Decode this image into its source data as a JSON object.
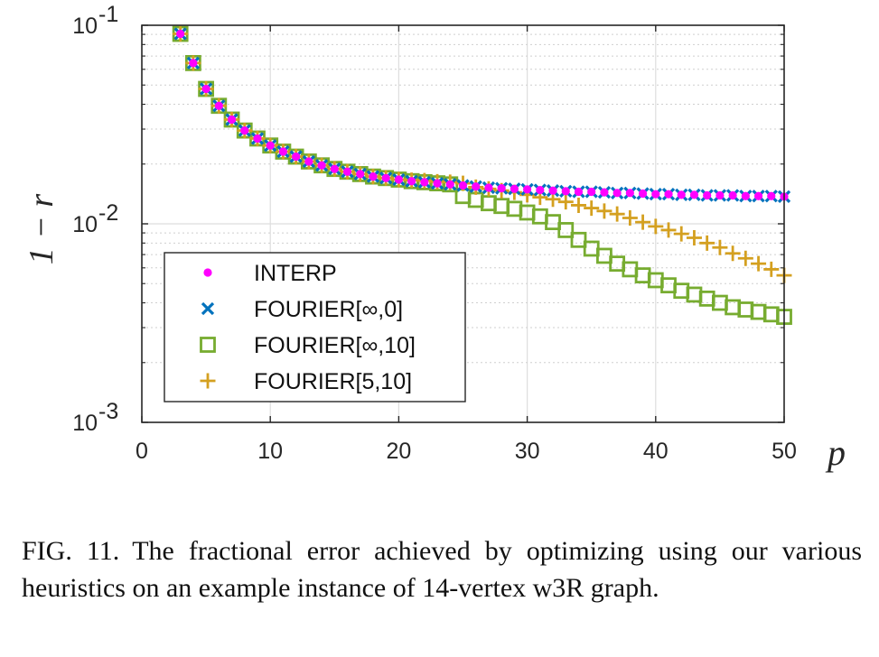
{
  "chart_data": {
    "type": "scatter",
    "xlabel": "p",
    "ylabel": "1 − r",
    "xlim": [
      0,
      50
    ],
    "ylim": [
      0.001,
      0.1
    ],
    "xscale": "linear",
    "yscale": "log",
    "grid": true,
    "minor_grid": true,
    "legend_position": "lower-left",
    "x_ticks": [
      0,
      10,
      20,
      30,
      40,
      50
    ],
    "x_tick_labels": [
      "0",
      "10",
      "20",
      "30",
      "40",
      "50"
    ],
    "y_ticks": [
      {
        "value": 0.1,
        "base": "10",
        "exp": "-1"
      },
      {
        "value": 0.01,
        "base": "10",
        "exp": "-2"
      },
      {
        "value": 0.001,
        "base": "10",
        "exp": "-3"
      }
    ],
    "series": [
      {
        "name": "INTERP",
        "marker": "dot",
        "color": "#ff00ff",
        "x": [
          3,
          4,
          5,
          6,
          7,
          8,
          9,
          10,
          11,
          12,
          13,
          14,
          15,
          16,
          17,
          18,
          19,
          20,
          21,
          22,
          23,
          24,
          25,
          26,
          27,
          28,
          29,
          30,
          31,
          32,
          33,
          34,
          35,
          36,
          37,
          38,
          39,
          40,
          41,
          42,
          43,
          44,
          45,
          46,
          47,
          48,
          49,
          50
        ],
        "y": [
          0.0905,
          0.0645,
          0.0478,
          0.0393,
          0.0335,
          0.0295,
          0.0269,
          0.0248,
          0.0231,
          0.0218,
          0.0206,
          0.0197,
          0.0189,
          0.0183,
          0.0178,
          0.0173,
          0.017,
          0.0167,
          0.0164,
          0.0162,
          0.016,
          0.0158,
          0.0156,
          0.0154,
          0.0152,
          0.0151,
          0.015,
          0.0149,
          0.0148,
          0.0147,
          0.0146,
          0.0145,
          0.0145,
          0.0144,
          0.0143,
          0.0143,
          0.0142,
          0.0141,
          0.0141,
          0.014,
          0.014,
          0.0139,
          0.0139,
          0.0139,
          0.0138,
          0.0138,
          0.0138,
          0.0137
        ]
      },
      {
        "name": "FOURIER[∞,0]",
        "marker": "x",
        "color": "#0072bd",
        "x": [
          3,
          4,
          5,
          6,
          7,
          8,
          9,
          10,
          11,
          12,
          13,
          14,
          15,
          16,
          17,
          18,
          19,
          20,
          21,
          22,
          23,
          24,
          25,
          26,
          27,
          28,
          29,
          30,
          31,
          32,
          33,
          34,
          35,
          36,
          37,
          38,
          39,
          40,
          41,
          42,
          43,
          44,
          45,
          46,
          47,
          48,
          49,
          50
        ],
        "y": [
          0.0905,
          0.0645,
          0.0478,
          0.0393,
          0.0335,
          0.0295,
          0.0269,
          0.0248,
          0.0231,
          0.0218,
          0.0206,
          0.0197,
          0.0189,
          0.0183,
          0.0178,
          0.0173,
          0.017,
          0.0167,
          0.0164,
          0.0162,
          0.016,
          0.0158,
          0.0156,
          0.0154,
          0.0152,
          0.0151,
          0.015,
          0.0149,
          0.0148,
          0.0147,
          0.0146,
          0.0145,
          0.0145,
          0.0144,
          0.0143,
          0.0143,
          0.0142,
          0.0141,
          0.0141,
          0.014,
          0.014,
          0.0139,
          0.0139,
          0.0139,
          0.0138,
          0.0138,
          0.0138,
          0.0137
        ]
      },
      {
        "name": "FOURIER[∞,10]",
        "marker": "square",
        "color": "#77ac30",
        "x": [
          3,
          4,
          5,
          6,
          7,
          8,
          9,
          10,
          11,
          12,
          13,
          14,
          15,
          16,
          17,
          18,
          19,
          20,
          21,
          22,
          23,
          24,
          25,
          26,
          27,
          28,
          29,
          30,
          31,
          32,
          33,
          34,
          35,
          36,
          37,
          38,
          39,
          40,
          41,
          42,
          43,
          44,
          45,
          46,
          47,
          48,
          49,
          50
        ],
        "y": [
          0.0905,
          0.0645,
          0.0478,
          0.0393,
          0.0335,
          0.0295,
          0.0269,
          0.0248,
          0.0231,
          0.0218,
          0.0206,
          0.0197,
          0.0189,
          0.0183,
          0.0178,
          0.0173,
          0.017,
          0.0167,
          0.0164,
          0.0162,
          0.016,
          0.0158,
          0.0138,
          0.0132,
          0.0127,
          0.0123,
          0.0119,
          0.0114,
          0.0109,
          0.0102,
          0.0093,
          0.0083,
          0.0075,
          0.0069,
          0.0063,
          0.0059,
          0.0055,
          0.0052,
          0.0049,
          0.0046,
          0.0044,
          0.0042,
          0.004,
          0.0038,
          0.0037,
          0.0036,
          0.0035,
          0.0034
        ]
      },
      {
        "name": "FOURIER[5,10]",
        "marker": "plus",
        "color": "#d4a020",
        "x": [
          3,
          4,
          5,
          6,
          7,
          8,
          9,
          10,
          11,
          12,
          13,
          14,
          15,
          16,
          17,
          18,
          19,
          20,
          21,
          22,
          23,
          24,
          25,
          26,
          27,
          28,
          29,
          30,
          31,
          32,
          33,
          34,
          35,
          36,
          37,
          38,
          39,
          40,
          41,
          42,
          43,
          44,
          45,
          46,
          47,
          48,
          49,
          50
        ],
        "y": [
          0.0905,
          0.0645,
          0.0478,
          0.0393,
          0.0335,
          0.0295,
          0.0269,
          0.0248,
          0.0231,
          0.0218,
          0.0206,
          0.0197,
          0.0189,
          0.0183,
          0.0178,
          0.0173,
          0.017,
          0.0167,
          0.0166,
          0.0165,
          0.0163,
          0.0162,
          0.016,
          0.0153,
          0.015,
          0.0147,
          0.0144,
          0.014,
          0.0136,
          0.0133,
          0.0129,
          0.0124,
          0.012,
          0.0116,
          0.0112,
          0.0107,
          0.0102,
          0.0097,
          0.0093,
          0.0089,
          0.0085,
          0.008,
          0.0076,
          0.0071,
          0.0067,
          0.0063,
          0.0059,
          0.0055
        ]
      }
    ]
  },
  "caption": {
    "label": "FIG. 11.",
    "text": "The fractional error achieved by optimizing using our various heuristics on an example instance of 14-vertex w3R graph."
  }
}
